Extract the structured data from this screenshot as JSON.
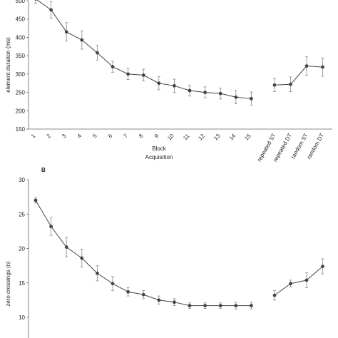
{
  "chart_data": [
    {
      "type": "line",
      "panel_label": "",
      "ylabel": "element duration (ms)",
      "xlabel": "Block",
      "xlabel_sub": "Acquisition",
      "ylim": [
        150,
        500
      ],
      "yticks": [
        150,
        200,
        250,
        300,
        350,
        400,
        450,
        500
      ],
      "acq_categories": [
        "1",
        "2",
        "3",
        "4",
        "5",
        "6",
        "7",
        "8",
        "9",
        "10",
        "11",
        "12",
        "13",
        "14",
        "15"
      ],
      "acq_values": [
        505,
        475,
        415,
        393,
        358,
        320,
        300,
        297,
        275,
        268,
        255,
        250,
        247,
        237,
        233
      ],
      "acq_errors": [
        12,
        22,
        25,
        25,
        20,
        15,
        15,
        16,
        18,
        18,
        15,
        15,
        15,
        18,
        18
      ],
      "test_categories": [
        "repeated ST",
        "repeated DT",
        "random ST",
        "random DT"
      ],
      "test_values": [
        270,
        272,
        322,
        319
      ],
      "test_errors": [
        18,
        20,
        25,
        25
      ]
    },
    {
      "type": "line",
      "panel_label": "B",
      "ylabel": "zero crossings (n)",
      "ylim": [
        10,
        30
      ],
      "yticks": [
        10,
        15,
        20,
        25,
        30
      ],
      "acq_values": [
        27.0,
        23.2,
        20.2,
        18.6,
        16.4,
        14.9,
        13.7,
        13.3,
        12.5,
        12.2,
        11.7,
        11.7,
        11.7,
        11.7,
        11.7
      ],
      "acq_errors": [
        0.4,
        1.3,
        1.4,
        1.3,
        1.1,
        1.0,
        0.6,
        0.6,
        0.6,
        0.5,
        0.4,
        0.4,
        0.4,
        0.5,
        0.5
      ],
      "test_values": [
        13.2,
        14.9,
        15.4,
        17.4
      ],
      "test_errors": [
        0.7,
        0.5,
        1.1,
        1.1
      ]
    }
  ]
}
